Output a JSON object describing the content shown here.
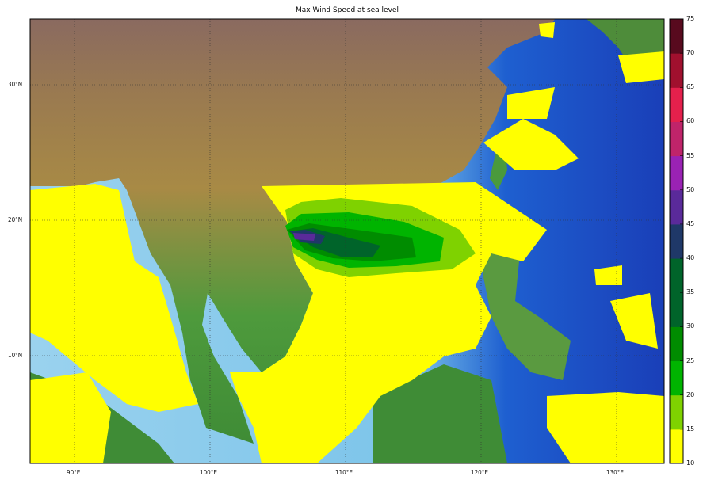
{
  "title": "Max Wind Speed at sea level",
  "map": {
    "projection": "equirectangular",
    "lon_range_deg_e": [
      86.7,
      133.5
    ],
    "lat_range_deg_n": [
      2.0,
      34.9
    ],
    "graticule": "dotted",
    "lon_labels": [
      "90°E",
      "100°E",
      "110°E",
      "120°E",
      "130°E"
    ],
    "lon_values": [
      90,
      100,
      110,
      120,
      130
    ],
    "lat_labels": [
      "30°N",
      "20°N",
      "10°N"
    ],
    "lat_values": [
      30,
      20,
      10
    ],
    "storm_core": "Gulf of Tonkin / south of Hainan, approx 18-19°N 106-108°E"
  },
  "colorbar": {
    "ticks": [
      "10",
      "15",
      "20",
      "25",
      "30",
      "35",
      "40",
      "45",
      "50",
      "55",
      "60",
      "65",
      "70",
      "75"
    ],
    "colors": [
      "#ffff00",
      "#7fd200",
      "#00b400",
      "#008c00",
      "#00642a",
      "#00642a",
      "#1f3868",
      "#5a2a9a",
      "#9a22b4",
      "#c0246a",
      "#e4204c",
      "#a0102e",
      "#580a1e"
    ]
  }
}
